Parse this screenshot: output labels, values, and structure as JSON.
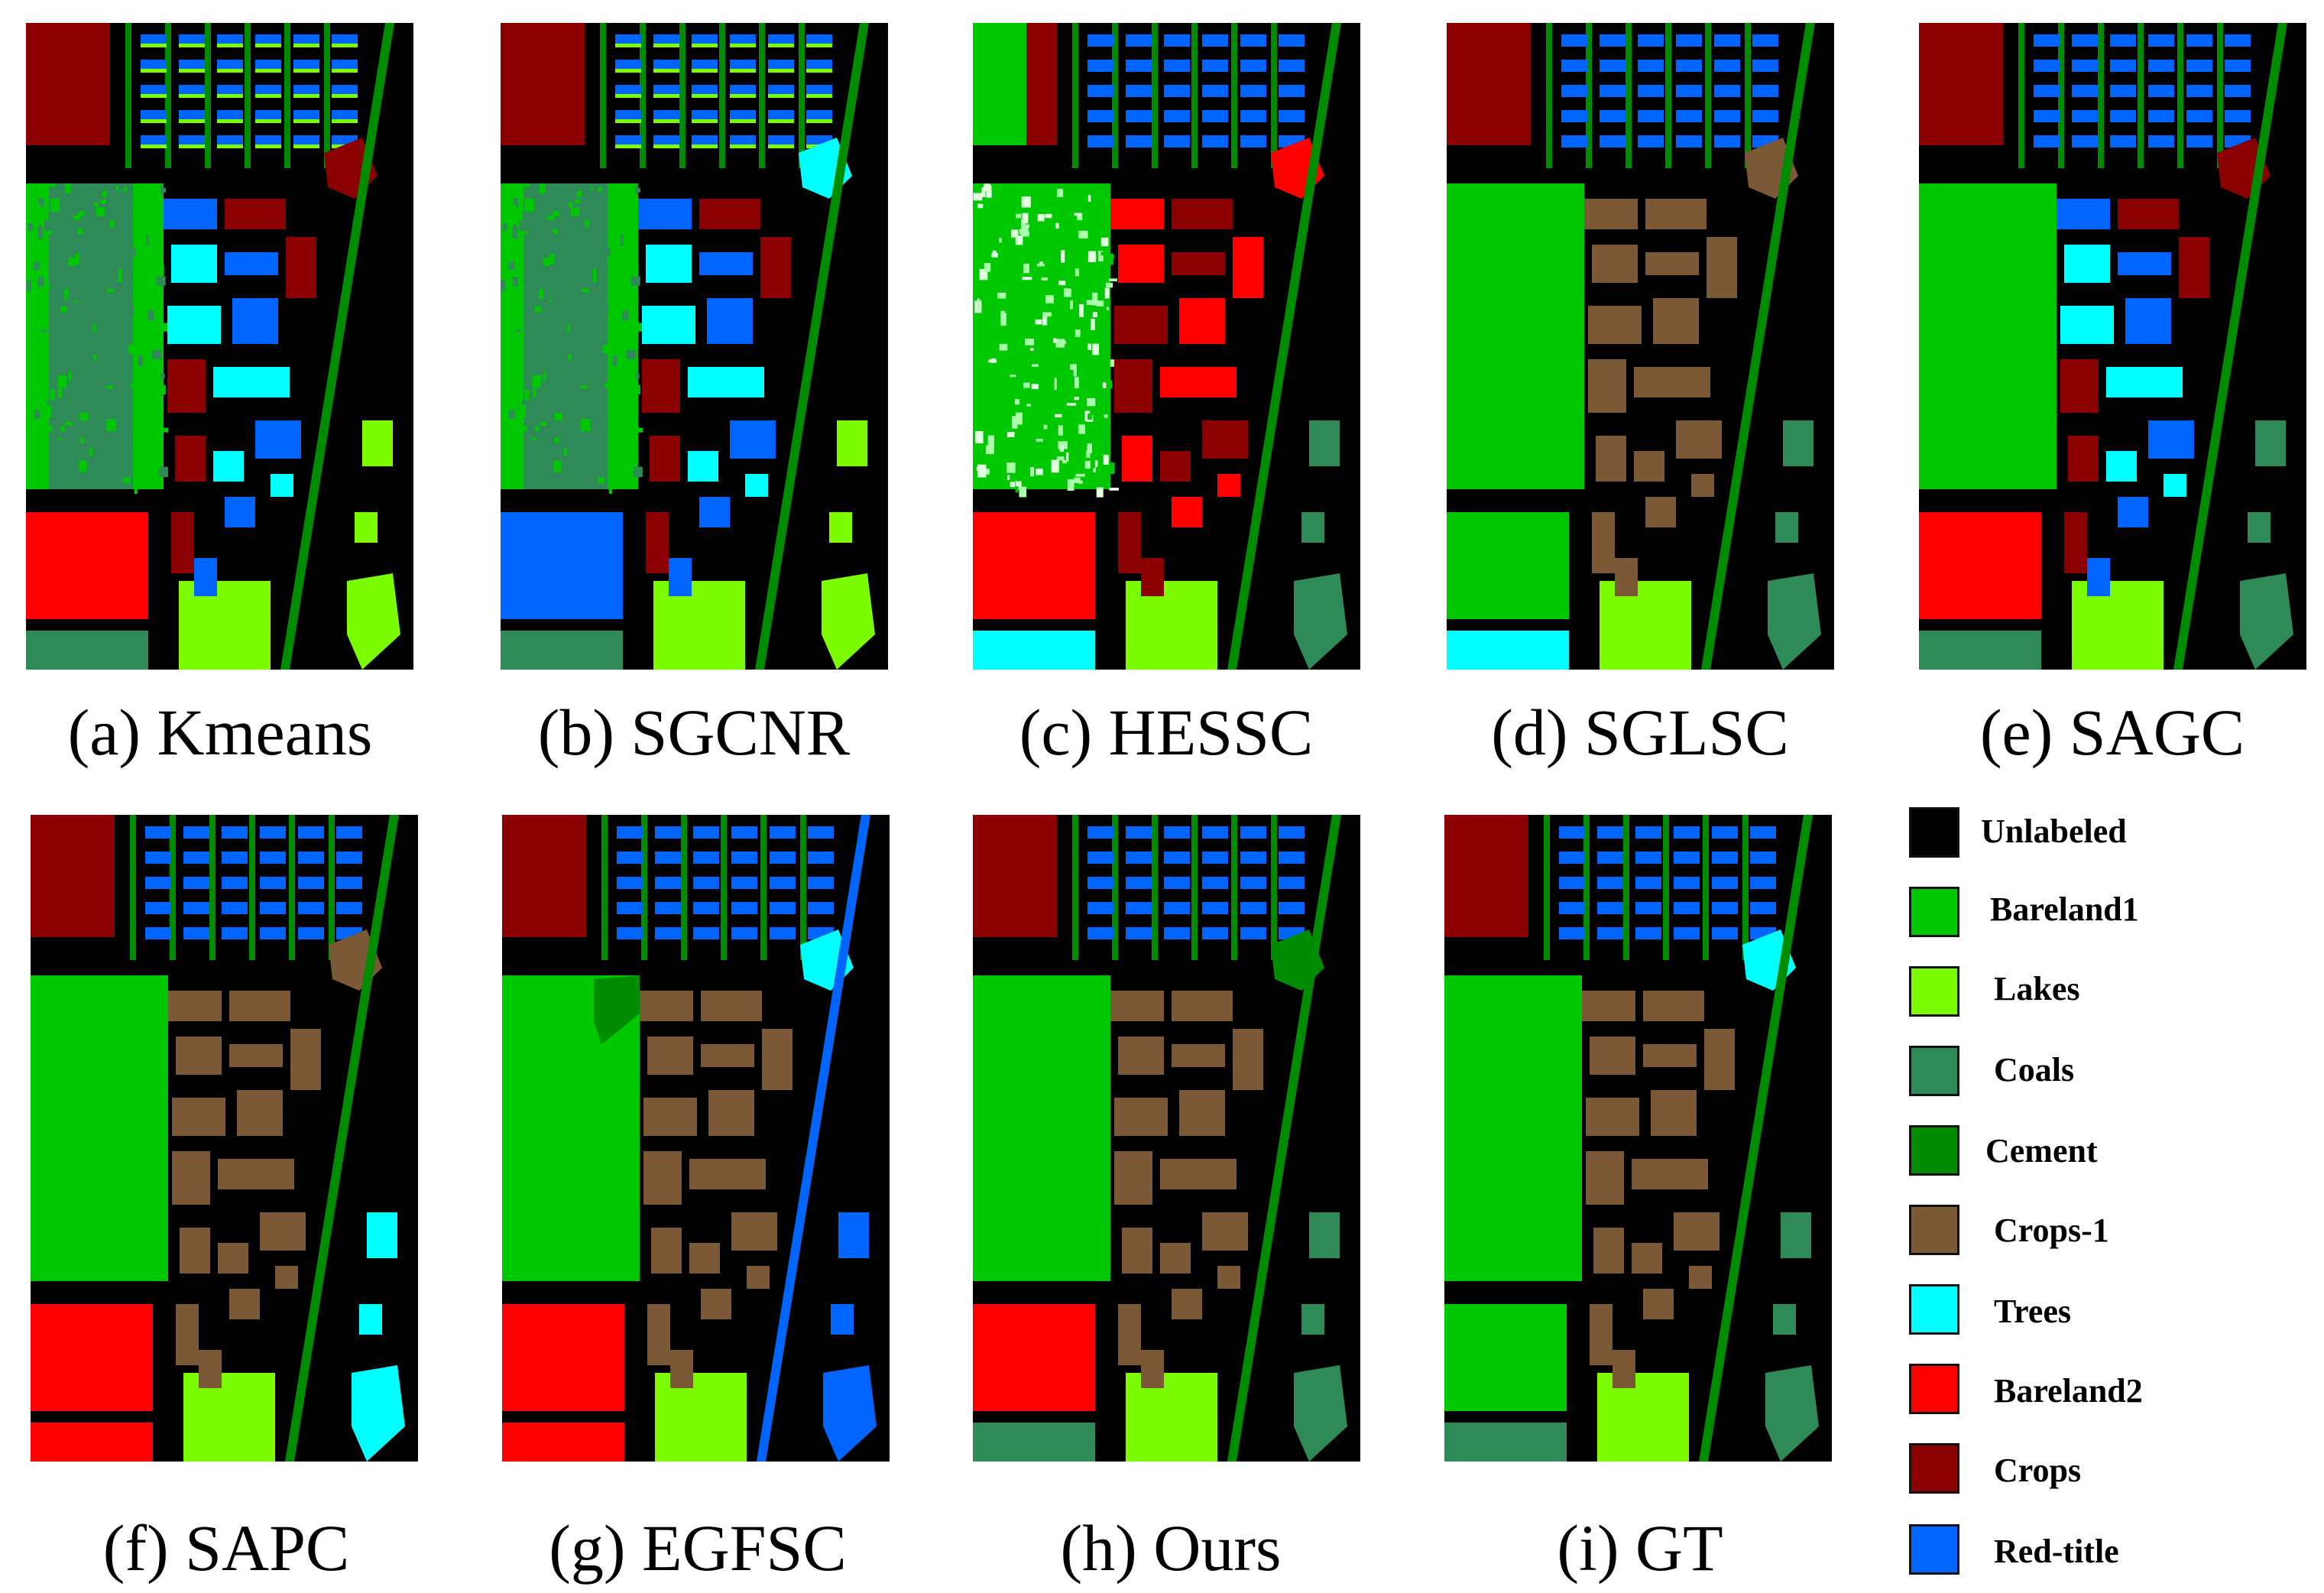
{
  "panels": [
    {
      "id": "a",
      "caption": "(a) Kmeans",
      "variant": "kmeans"
    },
    {
      "id": "b",
      "caption": "(b) SGCNR",
      "variant": "sgcnr"
    },
    {
      "id": "c",
      "caption": "(c) HESSC",
      "variant": "hessc"
    },
    {
      "id": "d",
      "caption": "(d) SGLSC",
      "variant": "sglsc"
    },
    {
      "id": "e",
      "caption": "(e) SAGC",
      "variant": "sagc"
    },
    {
      "id": "f",
      "caption": "(f) SAPC",
      "variant": "sapc"
    },
    {
      "id": "g",
      "caption": "(g) EGFSC",
      "variant": "egfsc"
    },
    {
      "id": "h",
      "caption": "(h) Ours",
      "variant": "ours"
    },
    {
      "id": "i",
      "caption": "(i) GT",
      "variant": "gt"
    }
  ],
  "legend": [
    {
      "label": "Unlabeled",
      "color": "#000000"
    },
    {
      "label": "Bareland1",
      "color": "#00c800"
    },
    {
      "label": "Lakes",
      "color": "#7cfc00"
    },
    {
      "label": "Coals",
      "color": "#2e8b57"
    },
    {
      "label": "Cement",
      "color": "#008c00"
    },
    {
      "label": "Crops-1",
      "color": "#7b5836"
    },
    {
      "label": "Trees",
      "color": "#00ffff"
    },
    {
      "label": "Bareland2",
      "color": "#ff0000"
    },
    {
      "label": "Crops",
      "color": "#8b0000"
    },
    {
      "label": "Red-title",
      "color": "#0064ff"
    }
  ]
}
